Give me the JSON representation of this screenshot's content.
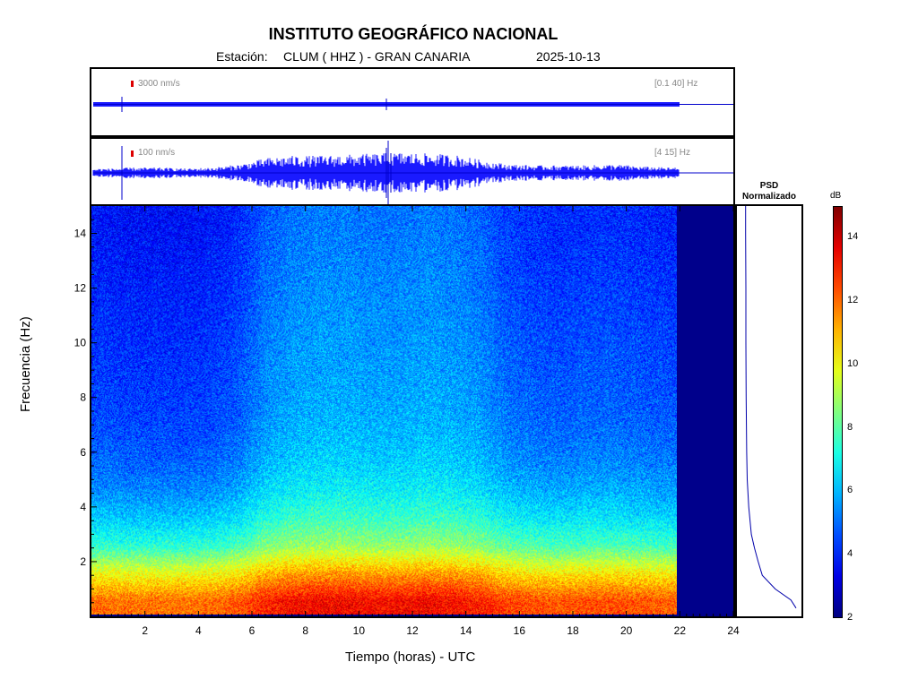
{
  "header": {
    "institution": "INSTITUTO GEOGRÁFICO NACIONAL",
    "station_label": "Estación:",
    "station": "CLUM ( HHZ ) - GRAN CANARIA",
    "date": "2025-10-13"
  },
  "traces": [
    {
      "amplitude_label": "3000 nm/s",
      "band_label": "[0.1 40] Hz"
    },
    {
      "amplitude_label": "100 nm/s",
      "band_label": "[4 15] Hz"
    }
  ],
  "psd": {
    "title_line1": "PSD",
    "title_line2": "Normalizado"
  },
  "colorbar": {
    "unit": "dB",
    "range": [
      2,
      15
    ],
    "ticks": [
      2,
      4,
      6,
      8,
      10,
      12,
      14
    ],
    "tick_labels": [
      "2",
      "4",
      "6",
      "8",
      "10",
      "12",
      "14"
    ],
    "colormap": "jet"
  },
  "chart_data": {
    "type": "heatmap",
    "xlabel": "Tiempo (horas) - UTC",
    "ylabel": "Frecuencia  (Hz)",
    "xlim": [
      0,
      24
    ],
    "ylim": [
      0,
      15
    ],
    "x_ticks": [
      2,
      4,
      6,
      8,
      10,
      12,
      14,
      16,
      18,
      20,
      22,
      24
    ],
    "x_tick_labels": [
      "2",
      "4",
      "6",
      "8",
      "10",
      "12",
      "14",
      "16",
      "18",
      "20",
      "22",
      "24"
    ],
    "y_ticks": [
      2,
      4,
      6,
      8,
      10,
      12,
      14
    ],
    "y_tick_labels": [
      "2",
      "4",
      "6",
      "8",
      "10",
      "12",
      "14"
    ],
    "data_end_hour": 21.9,
    "time_bins": [
      0,
      1,
      2,
      3,
      4,
      5,
      6,
      7,
      8,
      9,
      10,
      11,
      12,
      13,
      14,
      15,
      16,
      17,
      18,
      19,
      20,
      21
    ],
    "freq_bins": [
      0.5,
      1.5,
      2.5,
      3.5,
      4.5,
      5.5,
      6.5,
      7.5,
      8.5,
      9.5,
      10.5,
      11.5,
      12.5,
      13.5,
      14.5
    ],
    "db_by_frequency": [
      12.5,
      10.5,
      8,
      6.8,
      6,
      5.5,
      5.2,
      5,
      4.9,
      4.8,
      4.7,
      4.6,
      4.5,
      4.4,
      4.3
    ],
    "db_offset_by_hour": [
      -0.5,
      -0.6,
      -0.6,
      -0.6,
      -0.5,
      -0.2,
      0.5,
      0.8,
      0.9,
      0.9,
      0.8,
      0.8,
      0.9,
      0.8,
      0.6,
      0.1,
      -0.1,
      -0.2,
      -0.1,
      -0.1,
      -0.2,
      -0.3
    ],
    "psd_curve": {
      "freq": [
        0.3,
        0.6,
        1,
        1.5,
        2,
        2.5,
        3,
        4,
        5,
        6,
        7,
        8,
        10,
        12,
        14,
        15
      ],
      "value": [
        1.0,
        0.9,
        0.6,
        0.35,
        0.27,
        0.2,
        0.14,
        0.09,
        0.06,
        0.05,
        0.045,
        0.04,
        0.035,
        0.035,
        0.03,
        0.03
      ]
    }
  }
}
